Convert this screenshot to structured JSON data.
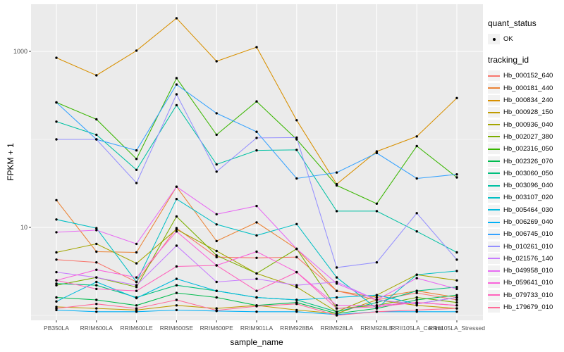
{
  "chart_data": {
    "type": "line",
    "title": "",
    "xlabel": "sample_name",
    "ylabel": "FPKM + 1",
    "y_scale": "log10",
    "y_axis": {
      "ticks": [
        {
          "value": 1000,
          "label": "1000"
        },
        {
          "value": 10,
          "label": "10"
        }
      ],
      "minor_gridlines": [
        100,
        1
      ],
      "range_log10": [
        -0.06,
        3.55
      ]
    },
    "legend_position": "right",
    "panel_bg": "#EBEBEB",
    "grid_color": "#FFFFFF",
    "point_color": "#000000",
    "legend": {
      "quant_status_title": "quant_status",
      "quant_status_items": [
        {
          "label": "OK",
          "marker": "point"
        }
      ],
      "tracking_title": "tracking_id"
    },
    "categories": [
      "PB350LA",
      "RRIM600LA",
      "RRIM600LE",
      "RRIM600SE",
      "RRIM600PE",
      "RRIM901LA",
      "RRIM928BA",
      "RRIM928LA",
      "RRIM928LE",
      "RRII105LA_Control",
      "RRII105LA_Stressed"
    ],
    "series": [
      {
        "name": "Hb_000152_640",
        "color": "#F8766D",
        "values": [
          4.3,
          4.0,
          2.4,
          9.8,
          4.6,
          4.5,
          4.6,
          1.9,
          1.5,
          1.8,
          1.5
        ]
      },
      {
        "name": "Hb_000181_440",
        "color": "#EB8335",
        "values": [
          20.4,
          5.3,
          5.2,
          29,
          7.0,
          11.4,
          5.7,
          1.9,
          1.6,
          1.9,
          1.6
        ]
      },
      {
        "name": "Hb_000834_240",
        "color": "#D89000",
        "values": [
          845,
          535,
          1020,
          2380,
          772,
          1117,
          165,
          31,
          73,
          108,
          295
        ]
      },
      {
        "name": "Hb_000928_150",
        "color": "#C09B00",
        "values": [
          1.25,
          1.2,
          1.15,
          1.3,
          1.2,
          1.3,
          1.15,
          1.05,
          1.5,
          1.3,
          1.2
        ]
      },
      {
        "name": "Hb_000936_040",
        "color": "#A3A500",
        "values": [
          5.2,
          6.5,
          3.9,
          9.5,
          5.4,
          3.0,
          2.1,
          1.1,
          1.7,
          2.9,
          2.5
        ]
      },
      {
        "name": "Hb_002027_380",
        "color": "#7CAE00",
        "values": [
          2.2,
          2.7,
          2.1,
          13.3,
          4.8,
          3.0,
          5.7,
          1.2,
          1.3,
          1.6,
          1.4
        ]
      },
      {
        "name": "Hb_002316_050",
        "color": "#39B600",
        "values": [
          263,
          169,
          60,
          497,
          113,
          270,
          100,
          30,
          18.6,
          84,
          37
        ]
      },
      {
        "name": "Hb_002326_070",
        "color": "#00BB4E",
        "values": [
          1.6,
          1.5,
          1.3,
          1.8,
          1.6,
          1.3,
          1.4,
          1.05,
          1.2,
          1.5,
          1.7
        ]
      },
      {
        "name": "Hb_003060_050",
        "color": "#00BF7D",
        "values": [
          2.3,
          2.2,
          1.6,
          2.2,
          1.9,
          1.6,
          1.5,
          1.1,
          1.4,
          1.9,
          2.1
        ]
      },
      {
        "name": "Hb_003096_040",
        "color": "#00C1A3",
        "values": [
          159,
          113,
          45,
          245,
          52,
          75,
          76,
          15.3,
          15.3,
          9.0,
          5.2
        ]
      },
      {
        "name": "Hb_003107_020",
        "color": "#00BFC4",
        "values": [
          12.3,
          9.8,
          2.4,
          21,
          10.8,
          8.1,
          10.9,
          2.7,
          1.2,
          2.9,
          3.2
        ]
      },
      {
        "name": "Hb_005464_030",
        "color": "#00BADE",
        "values": [
          1.44,
          2.4,
          1.57,
          2.6,
          1.9,
          1.6,
          1.5,
          1.6,
          1.7,
          1.35,
          1.6
        ]
      },
      {
        "name": "Hb_006269_040",
        "color": "#00B0F6",
        "values": [
          1.15,
          1.1,
          1.1,
          1.15,
          1.12,
          1.1,
          1.1,
          1.02,
          1.1,
          1.1,
          1.1
        ]
      },
      {
        "name": "Hb_006745_010",
        "color": "#35A2FF",
        "values": [
          263,
          100,
          75,
          420,
          198,
          122,
          36,
          42,
          70,
          36,
          40
        ]
      },
      {
        "name": "Hb_010261_010",
        "color": "#9590FF",
        "values": [
          100,
          100,
          32,
          325,
          43,
          104,
          105,
          3.5,
          4.0,
          14.5,
          4.3
        ]
      },
      {
        "name": "Hb_021576_140",
        "color": "#C77CFF",
        "values": [
          3.1,
          2.7,
          2.2,
          6.2,
          2.4,
          2.6,
          2.2,
          2.4,
          1.5,
          1.35,
          1.6
        ]
      },
      {
        "name": "Hb_049958_010",
        "color": "#E76BF3",
        "values": [
          8.8,
          9.3,
          6.5,
          29,
          14.1,
          17.5,
          5.7,
          2.3,
          1.5,
          2.65,
          2.0
        ]
      },
      {
        "name": "Hb_059641_010",
        "color": "#FA62DB",
        "values": [
          2.5,
          3.3,
          2.7,
          9.0,
          3.7,
          5.3,
          3.1,
          1.3,
          1.3,
          1.4,
          1.3
        ]
      },
      {
        "name": "Hb_079733_010",
        "color": "#FF62BC",
        "values": [
          2.5,
          2.0,
          1.9,
          3.6,
          3.7,
          1.9,
          3.1,
          1.2,
          1.25,
          1.4,
          1.3
        ]
      },
      {
        "name": "Hb_179679_010",
        "color": "#FF6A98",
        "values": [
          1.2,
          1.35,
          1.2,
          1.5,
          1.14,
          1.27,
          1.35,
          1.0,
          1.1,
          1.15,
          1.2
        ]
      }
    ]
  }
}
